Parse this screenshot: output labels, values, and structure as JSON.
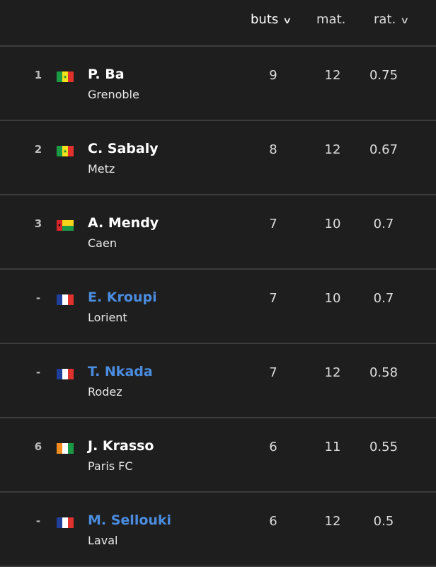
{
  "header": {
    "goals": "buts",
    "matches": "mat.",
    "ratio": "rat.",
    "chevron": "∨"
  },
  "colors": {
    "background": "#1e1e1e",
    "link": "#4a8de0",
    "divider": "#3c3c3c"
  },
  "rows": [
    {
      "rank": "1",
      "flag": "senegal",
      "name": "P. Ba",
      "club": "Grenoble",
      "goals": "9",
      "matches": "12",
      "ratio": "0.75",
      "link": false
    },
    {
      "rank": "2",
      "flag": "senegal",
      "name": "C. Sabaly",
      "club": "Metz",
      "goals": "8",
      "matches": "12",
      "ratio": "0.67",
      "link": false
    },
    {
      "rank": "3",
      "flag": "guinea-bissau",
      "name": "A. Mendy",
      "club": "Caen",
      "goals": "7",
      "matches": "10",
      "ratio": "0.7",
      "link": false
    },
    {
      "rank": "-",
      "flag": "france",
      "name": "E. Kroupi",
      "club": "Lorient",
      "goals": "7",
      "matches": "10",
      "ratio": "0.7",
      "link": true
    },
    {
      "rank": "-",
      "flag": "france",
      "name": "T. Nkada",
      "club": "Rodez",
      "goals": "7",
      "matches": "12",
      "ratio": "0.58",
      "link": true
    },
    {
      "rank": "6",
      "flag": "ivory-coast",
      "name": "J. Krasso",
      "club": "Paris FC",
      "goals": "6",
      "matches": "11",
      "ratio": "0.55",
      "link": false
    },
    {
      "rank": "-",
      "flag": "france",
      "name": "M. Sellouki",
      "club": "Laval",
      "goals": "6",
      "matches": "12",
      "ratio": "0.5",
      "link": true
    }
  ]
}
